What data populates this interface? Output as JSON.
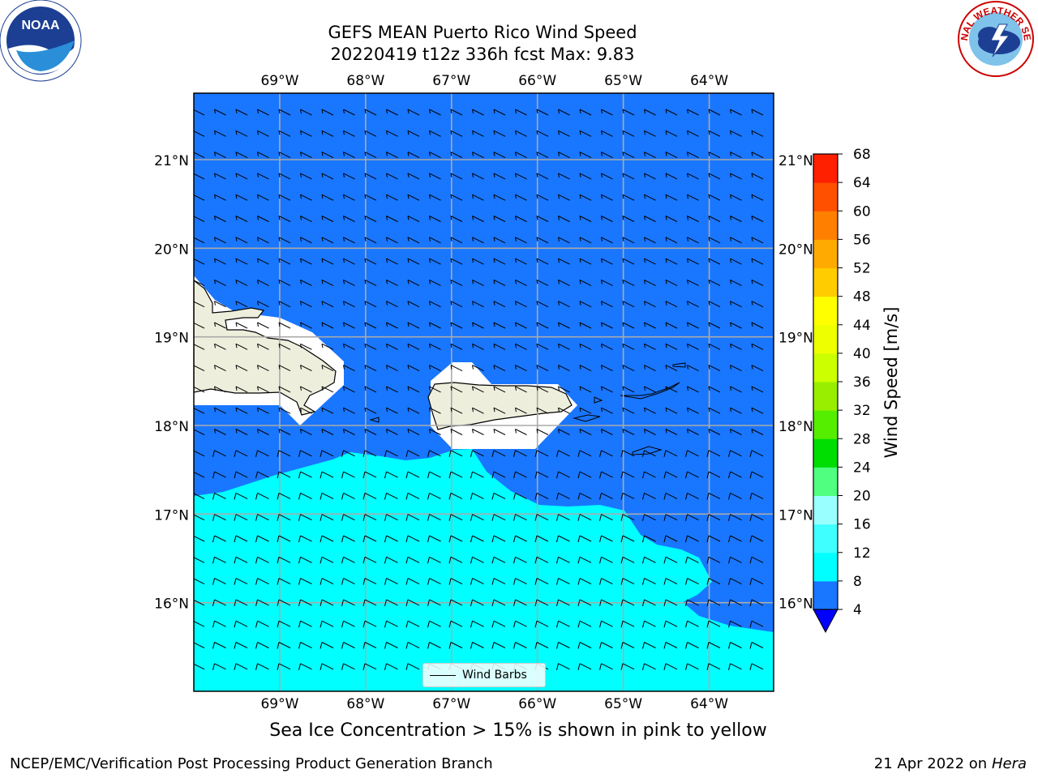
{
  "title": {
    "line1": "GEFS MEAN Puerto Rico Wind Speed",
    "line2": "20220419 t12z 336h fcst   Max: 9.83"
  },
  "logos": {
    "left": {
      "icon": "noaa-logo",
      "text": "NOAA"
    },
    "right": {
      "icon": "nws-logo",
      "text": "NATIONAL WEATHER SERVICE"
    }
  },
  "map": {
    "lon_labels": [
      "69°W",
      "68°W",
      "67°W",
      "66°W",
      "65°W",
      "64°W"
    ],
    "lat_labels": [
      "21°N",
      "20°N",
      "19°N",
      "18°N",
      "17°N",
      "16°N"
    ],
    "lon_values": [
      -69,
      -68,
      -67,
      -66,
      -65,
      -64
    ],
    "lat_values": [
      21,
      20,
      19,
      18,
      17,
      16
    ],
    "extent": {
      "lon_min": -70.0,
      "lon_max": -63.25,
      "lat_min": 15.0,
      "lat_max": 21.75
    },
    "colors": {
      "fill_4_8": "#1976FF",
      "fill_8_12": "#00FFFF",
      "land": "#EEEEDD",
      "masked": "#FFFFFF",
      "grid": "#AAAAAA"
    },
    "wind_field": "northeast-easterly barbs, 5-10 kt"
  },
  "legend": {
    "label": "Wind Barbs"
  },
  "colorbar": {
    "label": "Wind Speed [m/s]",
    "ticks": [
      "68",
      "64",
      "60",
      "56",
      "52",
      "48",
      "44",
      "40",
      "36",
      "32",
      "28",
      "24",
      "20",
      "16",
      "12",
      "8",
      "4"
    ],
    "colors": [
      "#0000FF",
      "#1976FF",
      "#00FFFF",
      "#40FFFF",
      "#99FFFF",
      "#50FF80",
      "#00DD00",
      "#55EE00",
      "#99EE00",
      "#CCFF00",
      "#EEFF00",
      "#FFFF00",
      "#FFCC00",
      "#FFAA00",
      "#FF8000",
      "#FF5000",
      "#FF2000",
      "#FF0000"
    ]
  },
  "note": "Sea Ice Concentration > 15% is shown in pink to yellow",
  "footer": {
    "left": "NCEP/EMC/Verification Post Processing Product Generation Branch",
    "right_date": "21 Apr 2022 on ",
    "right_host": "Hera"
  }
}
